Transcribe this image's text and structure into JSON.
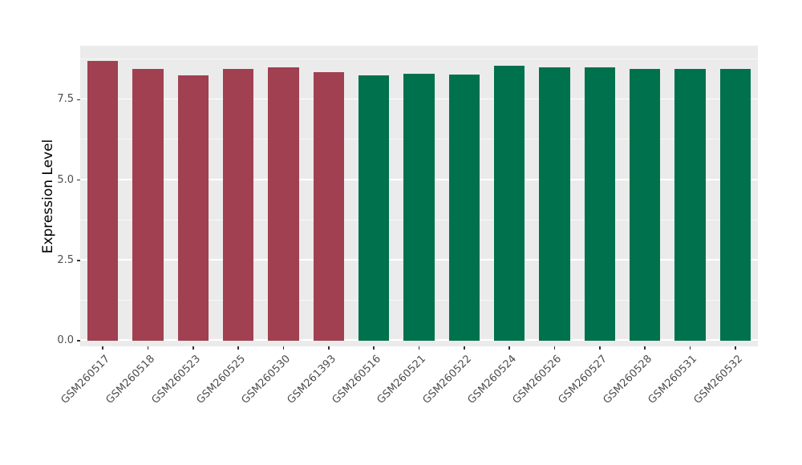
{
  "chart_data": {
    "type": "bar",
    "title": "",
    "xlabel": "",
    "ylabel": "Expression Level",
    "categories": [
      "GSM260517",
      "GSM260518",
      "GSM260523",
      "GSM260525",
      "GSM260530",
      "GSM261393",
      "GSM260516",
      "GSM260521",
      "GSM260522",
      "GSM260524",
      "GSM260526",
      "GSM260527",
      "GSM260528",
      "GSM260531",
      "GSM260532"
    ],
    "values": [
      8.7,
      8.45,
      8.25,
      8.45,
      8.5,
      8.35,
      8.25,
      8.3,
      8.28,
      8.55,
      8.5,
      8.5,
      8.45,
      8.45,
      8.45
    ],
    "groups": [
      "group1",
      "group1",
      "group1",
      "group1",
      "group1",
      "group1",
      "group2",
      "group2",
      "group2",
      "group2",
      "group2",
      "group2",
      "group2",
      "group2",
      "group2"
    ],
    "group_colors": {
      "group1": "#A04051",
      "group2": "#00714D"
    },
    "yticks": [
      0,
      2.5,
      5,
      7.5
    ],
    "ytick_labels": [
      "0.0",
      "2.5",
      "5.0",
      "7.5"
    ],
    "minor_ticks": [
      1.25,
      3.75,
      6.25,
      8.75
    ],
    "ylim": [
      -0.18,
      9.18
    ],
    "grid": true,
    "legend": "none",
    "panel_bg": "#EBEBEB",
    "grid_color": "#FFFFFF",
    "tick_label_color": "#4D4D4D",
    "x_label_rotation_deg": 45
  }
}
